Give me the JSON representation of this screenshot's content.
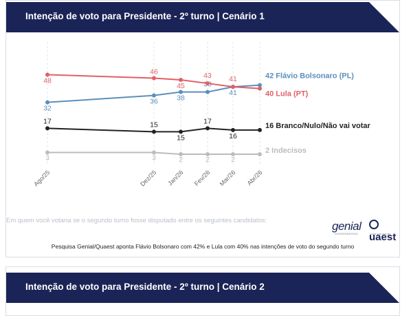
{
  "card1": {
    "title": "Intenção de voto para Presidente - 2º turno | Cenário 1",
    "footnote": "Em quem você votaria se o segundo turno fosse disputado entre os seguintes candidatos:",
    "caption": "Pesquisa Genial/Quaest aponta Flávio Bolsonaro com 42% e Lula com 40% nas intenções de voto do segundo turno",
    "logo_genial": "genial",
    "logo_genial_sub": "investimentos",
    "logo_quaest": "uaest",
    "logo_quaest_sub": "para voa qua ter"
  },
  "card2": {
    "title": "Intenção de voto para Presidente - 2º turno | Cenário 2"
  },
  "colors": {
    "banner": "#1b2456",
    "bolsonaro": "#5b8fbc",
    "lula": "#e06066",
    "branco": "#222222",
    "indecisos": "#bcbcbc"
  },
  "chart_data": {
    "type": "line",
    "categories": [
      "Ago/25",
      "Dez/25",
      "Jan/26",
      "Fev/26",
      "Mar/26",
      "Abr/26"
    ],
    "series": [
      {
        "name": "Flávio Bolsonaro (PL)",
        "end_label": "42 Flávio Bolsonaro (PL)",
        "values": [
          32,
          36,
          38,
          38,
          41,
          42
        ],
        "labels": [
          "32",
          "36",
          "38",
          "38",
          "41",
          ""
        ],
        "color_key": "bolsonaro"
      },
      {
        "name": "Lula (PT)",
        "end_label": "40 Lula (PT)",
        "values": [
          48,
          46,
          45,
          43,
          41,
          40
        ],
        "labels": [
          "48",
          "46",
          "45",
          "43",
          "41",
          ""
        ],
        "color_key": "lula"
      },
      {
        "name": "Branco/Nulo/Não vai votar",
        "end_label": "16 Branco/Nulo/Não vai votar",
        "values": [
          17,
          15,
          15,
          17,
          16,
          16
        ],
        "labels": [
          "17",
          "15",
          "15",
          "17",
          "16",
          ""
        ],
        "color_key": "branco"
      },
      {
        "name": "Indecisos",
        "end_label": "2 Indecisos",
        "values": [
          3,
          3,
          2,
          2,
          2,
          2
        ],
        "labels": [
          "3",
          "3",
          "2",
          "2",
          "2",
          ""
        ],
        "color_key": "indecisos"
      }
    ],
    "grid": "vertical",
    "legend": "end-of-line labels"
  }
}
